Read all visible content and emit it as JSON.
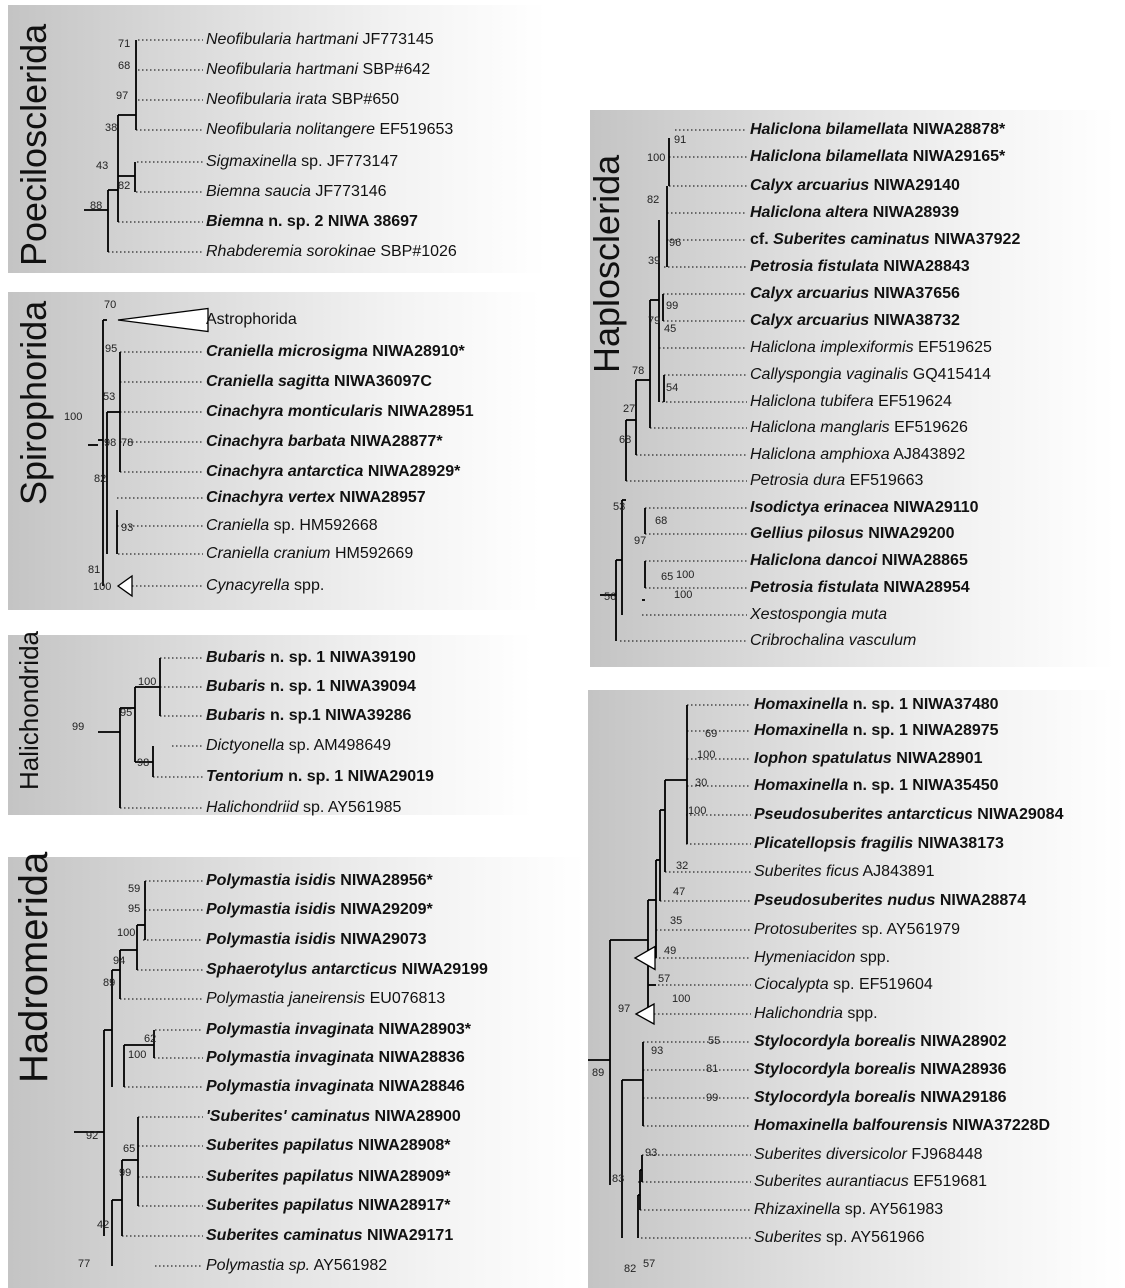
{
  "panels": [
    {
      "id": "poecilosclerida",
      "title": "Poecilosclerida",
      "leaves": [
        {
          "name": "Neofibularia hartmani",
          "rest": " JF773145",
          "bold": false
        },
        {
          "name": "Neofibularia hartmani",
          "rest": " SBP#642",
          "bold": false
        },
        {
          "name": "Neofibularia irata",
          "rest": " SBP#650",
          "bold": false
        },
        {
          "name": "Neofibularia nolitangere",
          "rest": " EF519653",
          "bold": false
        },
        {
          "name": "Sigmaxinella",
          "rest": " sp. JF773147",
          "bold": false
        },
        {
          "name": "Biemna saucia",
          "rest": " JF773146",
          "bold": false
        },
        {
          "name": "Biemna",
          "rest": " n. sp. 2 NIWA 38697",
          "bold": true
        },
        {
          "name": "Rhabderemia sorokinae",
          "rest": " SBP#1026",
          "bold": false
        }
      ],
      "support": [
        "71",
        "68",
        "97",
        "38",
        "82",
        "43",
        "88"
      ]
    },
    {
      "id": "spirophorida",
      "title": "Spirophorida",
      "leaves": [
        {
          "name": "",
          "rest": "Astrophorida",
          "bold": false
        },
        {
          "name": "Craniella microsigma",
          "rest": " NIWA28910*",
          "bold": true
        },
        {
          "name": "Craniella sagitta",
          "rest": " NIWA36097C",
          "bold": true
        },
        {
          "name": "Cinachyra monticularis",
          "rest": " NIWA28951",
          "bold": true
        },
        {
          "name": "Cinachyra barbata",
          "rest": " NIWA28877*",
          "bold": true
        },
        {
          "name": "Cinachyra antarctica",
          "rest": " NIWA28929*",
          "bold": true
        },
        {
          "name": "Cinachyra vertex",
          "rest": " NIWA28957",
          "bold": true
        },
        {
          "name": "Craniella",
          "rest": " sp. HM592668",
          "bold": false
        },
        {
          "name": "Craniella cranium",
          "rest": " HM592669",
          "bold": false
        },
        {
          "name": "Cynacyrella",
          "rest": " spp.",
          "bold": false
        }
      ],
      "support": [
        "70",
        "95",
        "53",
        "100",
        "98",
        "78",
        "82",
        "93",
        "81",
        "100"
      ]
    },
    {
      "id": "halichondrida",
      "title": "Halichondrida",
      "leaves": [
        {
          "name": "Bubaris",
          "rest": " n. sp. 1 NIWA39190",
          "bold": true
        },
        {
          "name": "Bubaris",
          "rest": " n. sp. 1 NIWA39094",
          "bold": true
        },
        {
          "name": "Bubaris",
          "rest": " n. sp.1 NIWA39286",
          "bold": true
        },
        {
          "name": "Dictyonella",
          "rest": " sp. AM498649",
          "bold": false
        },
        {
          "name": "Tentorium",
          "rest": " n. sp. 1 NIWA29019",
          "bold": true
        },
        {
          "name": "Halichondriid",
          "rest": " sp. AY561985",
          "bold": false
        }
      ],
      "support": [
        "100",
        "95",
        "99",
        "98"
      ]
    },
    {
      "id": "hadromerida",
      "title": "Hadromerida",
      "leaves": [
        {
          "name": "Polymastia isidis",
          "rest": " NIWA28956*",
          "bold": true
        },
        {
          "name": "Polymastia isidis",
          "rest": " NIWA29209*",
          "bold": true
        },
        {
          "name": "Polymastia isidis",
          "rest": " NIWA29073",
          "bold": true
        },
        {
          "name": "Sphaerotylus antarcticus",
          "rest": " NIWA29199",
          "bold": true
        },
        {
          "name": "Polymastia janeirensis",
          "rest": " EU076813",
          "bold": false
        },
        {
          "name": "Polymastia invaginata",
          "rest": " NIWA28903*",
          "bold": true
        },
        {
          "name": "Polymastia invaginata",
          "rest": " NIWA28836",
          "bold": true
        },
        {
          "name": "Polymastia invaginata",
          "rest": " NIWA28846",
          "bold": true
        },
        {
          "name": "'Suberites' caminatus",
          "rest": " NIWA28900",
          "bold": true
        },
        {
          "name": "Suberites papilatus",
          "rest": " NIWA28908*",
          "bold": true
        },
        {
          "name": "Suberites papilatus",
          "rest": " NIWA28909*",
          "bold": true
        },
        {
          "name": "Suberites papilatus",
          "rest": " NIWA28917*",
          "bold": true
        },
        {
          "name": "Suberites caminatus",
          "rest": " NIWA29171",
          "bold": true
        },
        {
          "name": "Polymastia sp.",
          "rest": " AY561982",
          "bold": false
        }
      ],
      "support": [
        "59",
        "95",
        "100",
        "94",
        "89",
        "62",
        "100",
        "92",
        "65",
        "99",
        "42",
        "77"
      ]
    },
    {
      "id": "haplosclerida",
      "title": "Haplosclerida",
      "leaves": [
        {
          "name": "Haliclona bilamellata",
          "rest": " NIWA28878*",
          "bold": true
        },
        {
          "name": "Haliclona bilamellata",
          "rest": " NIWA29165*",
          "bold": true
        },
        {
          "name": "Calyx arcuarius",
          "rest": " NIWA29140",
          "bold": true
        },
        {
          "name": "Haliclona altera",
          "rest": " NIWA28939",
          "bold": true
        },
        {
          "name": "Suberites caminatus",
          "rest": " NIWA37922",
          "prefix": "cf. ",
          "bold": true
        },
        {
          "name": "Petrosia fistulata",
          "rest": " NIWA28843",
          "bold": true
        },
        {
          "name": "Calyx arcuarius",
          "rest": " NIWA37656",
          "bold": true
        },
        {
          "name": "Calyx arcuarius",
          "rest": " NIWA38732",
          "bold": true
        },
        {
          "name": "Haliclona implexiformis",
          "rest": " EF519625",
          "bold": false
        },
        {
          "name": "Callyspongia vaginalis",
          "rest": " GQ415414",
          "bold": false
        },
        {
          "name": "Haliclona tubifera",
          "rest": " EF519624",
          "bold": false
        },
        {
          "name": "Haliclona manglaris",
          "rest": " EF519626",
          "bold": false
        },
        {
          "name": "Haliclona amphioxa",
          "rest": " AJ843892",
          "bold": false
        },
        {
          "name": "Petrosia dura",
          "rest": " EF519663",
          "bold": false
        },
        {
          "name": "Isodictya erinacea",
          "rest": " NIWA29110",
          "bold": true
        },
        {
          "name": "Gellius pilosus",
          "rest": " NIWA29200",
          "bold": true
        },
        {
          "name": "Haliclona dancoi",
          "rest": " NIWA28865",
          "bold": true
        },
        {
          "name": "Petrosia fistulata",
          "rest": " NIWA28954",
          "bold": true
        },
        {
          "name": "Xestospongia muta",
          "rest": "",
          "bold": false
        },
        {
          "name": "Cribrochalina vasculum",
          "rest": "",
          "bold": false
        }
      ],
      "support": [
        "91",
        "100",
        "82",
        "96",
        "39",
        "99",
        "45",
        "79",
        "54",
        "78",
        "27",
        "68",
        "53",
        "68",
        "97",
        "100",
        "65",
        "100",
        "56"
      ]
    },
    {
      "id": "lower-right",
      "title": "",
      "leaves": [
        {
          "name": "Homaxinella",
          "rest": " n. sp. 1 NIWA37480",
          "bold": true
        },
        {
          "name": "Homaxinella",
          "rest": " n. sp. 1 NIWA28975",
          "bold": true
        },
        {
          "name": "Iophon spatulatus",
          "rest": " NIWA28901",
          "bold": true
        },
        {
          "name": "Homaxinella",
          "rest": " n. sp. 1 NIWA35450",
          "bold": true
        },
        {
          "name": "Pseudosuberites antarcticus",
          "rest": " NIWA29084",
          "bold": true
        },
        {
          "name": "Plicatellopsis fragilis",
          "rest": " NIWA38173",
          "bold": true
        },
        {
          "name": "Suberites ficus",
          "rest": " AJ843891",
          "bold": false
        },
        {
          "name": "Pseudosuberites nudus",
          "rest": " NIWA28874",
          "bold": true
        },
        {
          "name": "Protosuberites",
          "rest": " sp. AY561979",
          "bold": false
        },
        {
          "name": "Hymeniacidon",
          "rest": " spp.",
          "bold": false
        },
        {
          "name": "Ciocalypta",
          "rest": " sp. EF519604",
          "bold": false
        },
        {
          "name": "Halichondria",
          "rest": " spp.",
          "bold": false
        },
        {
          "name": "Stylocordyla borealis",
          "rest": " NIWA28902",
          "bold": true
        },
        {
          "name": "Stylocordyla borealis",
          "rest": " NIWA28936",
          "bold": true
        },
        {
          "name": "Stylocordyla borealis",
          "rest": " NIWA29186",
          "bold": true
        },
        {
          "name": "Homaxinella balfourensis",
          "rest": " NIWA37228D",
          "bold": true
        },
        {
          "name": "Suberites diversicolor",
          "rest": " FJ968448",
          "bold": false
        },
        {
          "name": "Suberites aurantiacus",
          "rest": " EF519681",
          "bold": false
        },
        {
          "name": "Rhizaxinella",
          "rest": " sp. AY561983",
          "bold": false
        },
        {
          "name": "Suberites",
          "rest": " sp. AY561966",
          "bold": false
        }
      ],
      "support": [
        "69",
        "100",
        "30",
        "100",
        "32",
        "47",
        "35",
        "49",
        "57",
        "100",
        "97",
        "93",
        "55",
        "81",
        "99",
        "89",
        "93",
        "82",
        "57",
        "83"
      ]
    }
  ]
}
